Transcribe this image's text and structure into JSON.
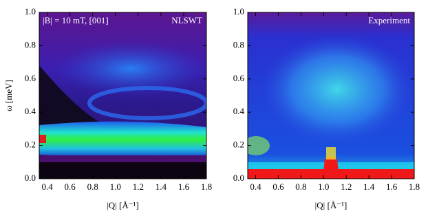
{
  "chart_data": [
    {
      "type": "heatmap",
      "annotation": "|B| = 10 mT, [001]",
      "label": "NLSWT",
      "x_label": "|Q| [Å⁻¹]",
      "y_label": "ω [meV]",
      "xlim": [
        0.33,
        1.8
      ],
      "ylim": [
        0,
        1
      ],
      "xticks": [
        0.4,
        0.6,
        0.8,
        {
          "value": 1,
          "label": "1.0"
        },
        1.2,
        1.4,
        1.6,
        1.8
      ],
      "yticks": [
        {
          "value": 0,
          "label": "0.0"
        },
        0.2,
        0.4,
        0.6,
        0.8,
        {
          "value": 1,
          "label": "1.0"
        }
      ]
    },
    {
      "type": "heatmap",
      "label": "Experiment",
      "x_label": "|Q| [Å⁻¹]",
      "xlim": [
        0.33,
        1.8
      ],
      "ylim": [
        0,
        1
      ],
      "xticks": [
        0.4,
        0.6,
        0.8,
        {
          "value": 1,
          "label": "1.0"
        },
        1.2,
        1.4,
        1.6,
        1.8
      ],
      "yticks": [
        {
          "value": 0,
          "label": "0.0"
        },
        0.2,
        0.4,
        0.6,
        0.8,
        {
          "value": 1,
          "label": "1.0"
        }
      ]
    }
  ]
}
